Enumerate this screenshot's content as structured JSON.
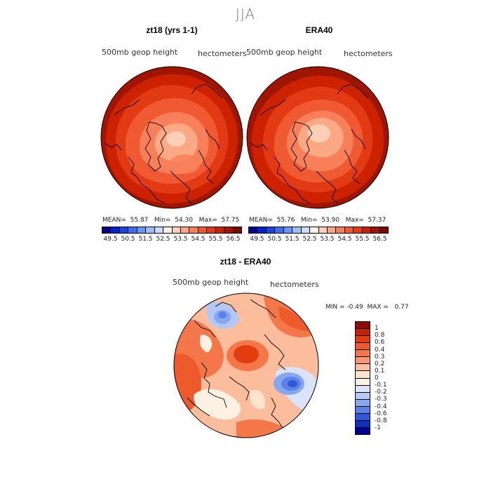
{
  "season": "JJA",
  "panels": [
    {
      "title": "zt18 (yrs 1-1)",
      "variable": "500mb geop height",
      "units": "hectometers",
      "stats": {
        "mean_label": "MEAN=",
        "mean": "55.87",
        "min_label": "Min=",
        "min": "54.30",
        "max_label": "Max=",
        "max": "57.75"
      }
    },
    {
      "title": "ERA40",
      "variable": "500mb geop height",
      "units": "hectometers",
      "stats": {
        "mean_label": "MEAN=",
        "mean": "55.76",
        "min_label": "Min=",
        "min": "53.90",
        "max_label": "Max=",
        "max": "57.37"
      }
    }
  ],
  "colorbar": {
    "ticks": [
      "49.5",
      "50.5",
      "51.5",
      "52.5",
      "53.5",
      "54.5",
      "55.5",
      "56.5"
    ],
    "colors": [
      "#00008b",
      "#0022c8",
      "#1a44e0",
      "#3b6ef0",
      "#6a97f5",
      "#9cbdf8",
      "#c9dcfb",
      "#f8f0e6",
      "#fcd0b6",
      "#fba884",
      "#f7805a",
      "#ef5a33",
      "#e23a14",
      "#cc2200",
      "#a01500",
      "#7a0a00"
    ]
  },
  "diff_panel": {
    "title": "zt18 - ERA40",
    "variable": "500mb geop height",
    "units": "hectometers",
    "min_label": "MIN =",
    "min": "-0.49",
    "max_label": "MAX =",
    "max": "0.77"
  },
  "diff_colorbar": {
    "labels": [
      "1",
      "0.8",
      "0.6",
      "0.4",
      "0.3",
      "0.2",
      "0.1",
      "0",
      "-0.1",
      "-0.2",
      "-0.3",
      "-0.4",
      "-0.6",
      "-0.8",
      "-1"
    ],
    "colors": [
      "#8b0e00",
      "#c42200",
      "#e23c10",
      "#ee5a2c",
      "#f4774a",
      "#f99870",
      "#fbbd9c",
      "#fde2cc",
      "#fdf1e4",
      "#d9e4fa",
      "#b3c8f5",
      "#86a6ee",
      "#5a82e8",
      "#2f58dc",
      "#1030c0",
      "#000090"
    ]
  }
}
